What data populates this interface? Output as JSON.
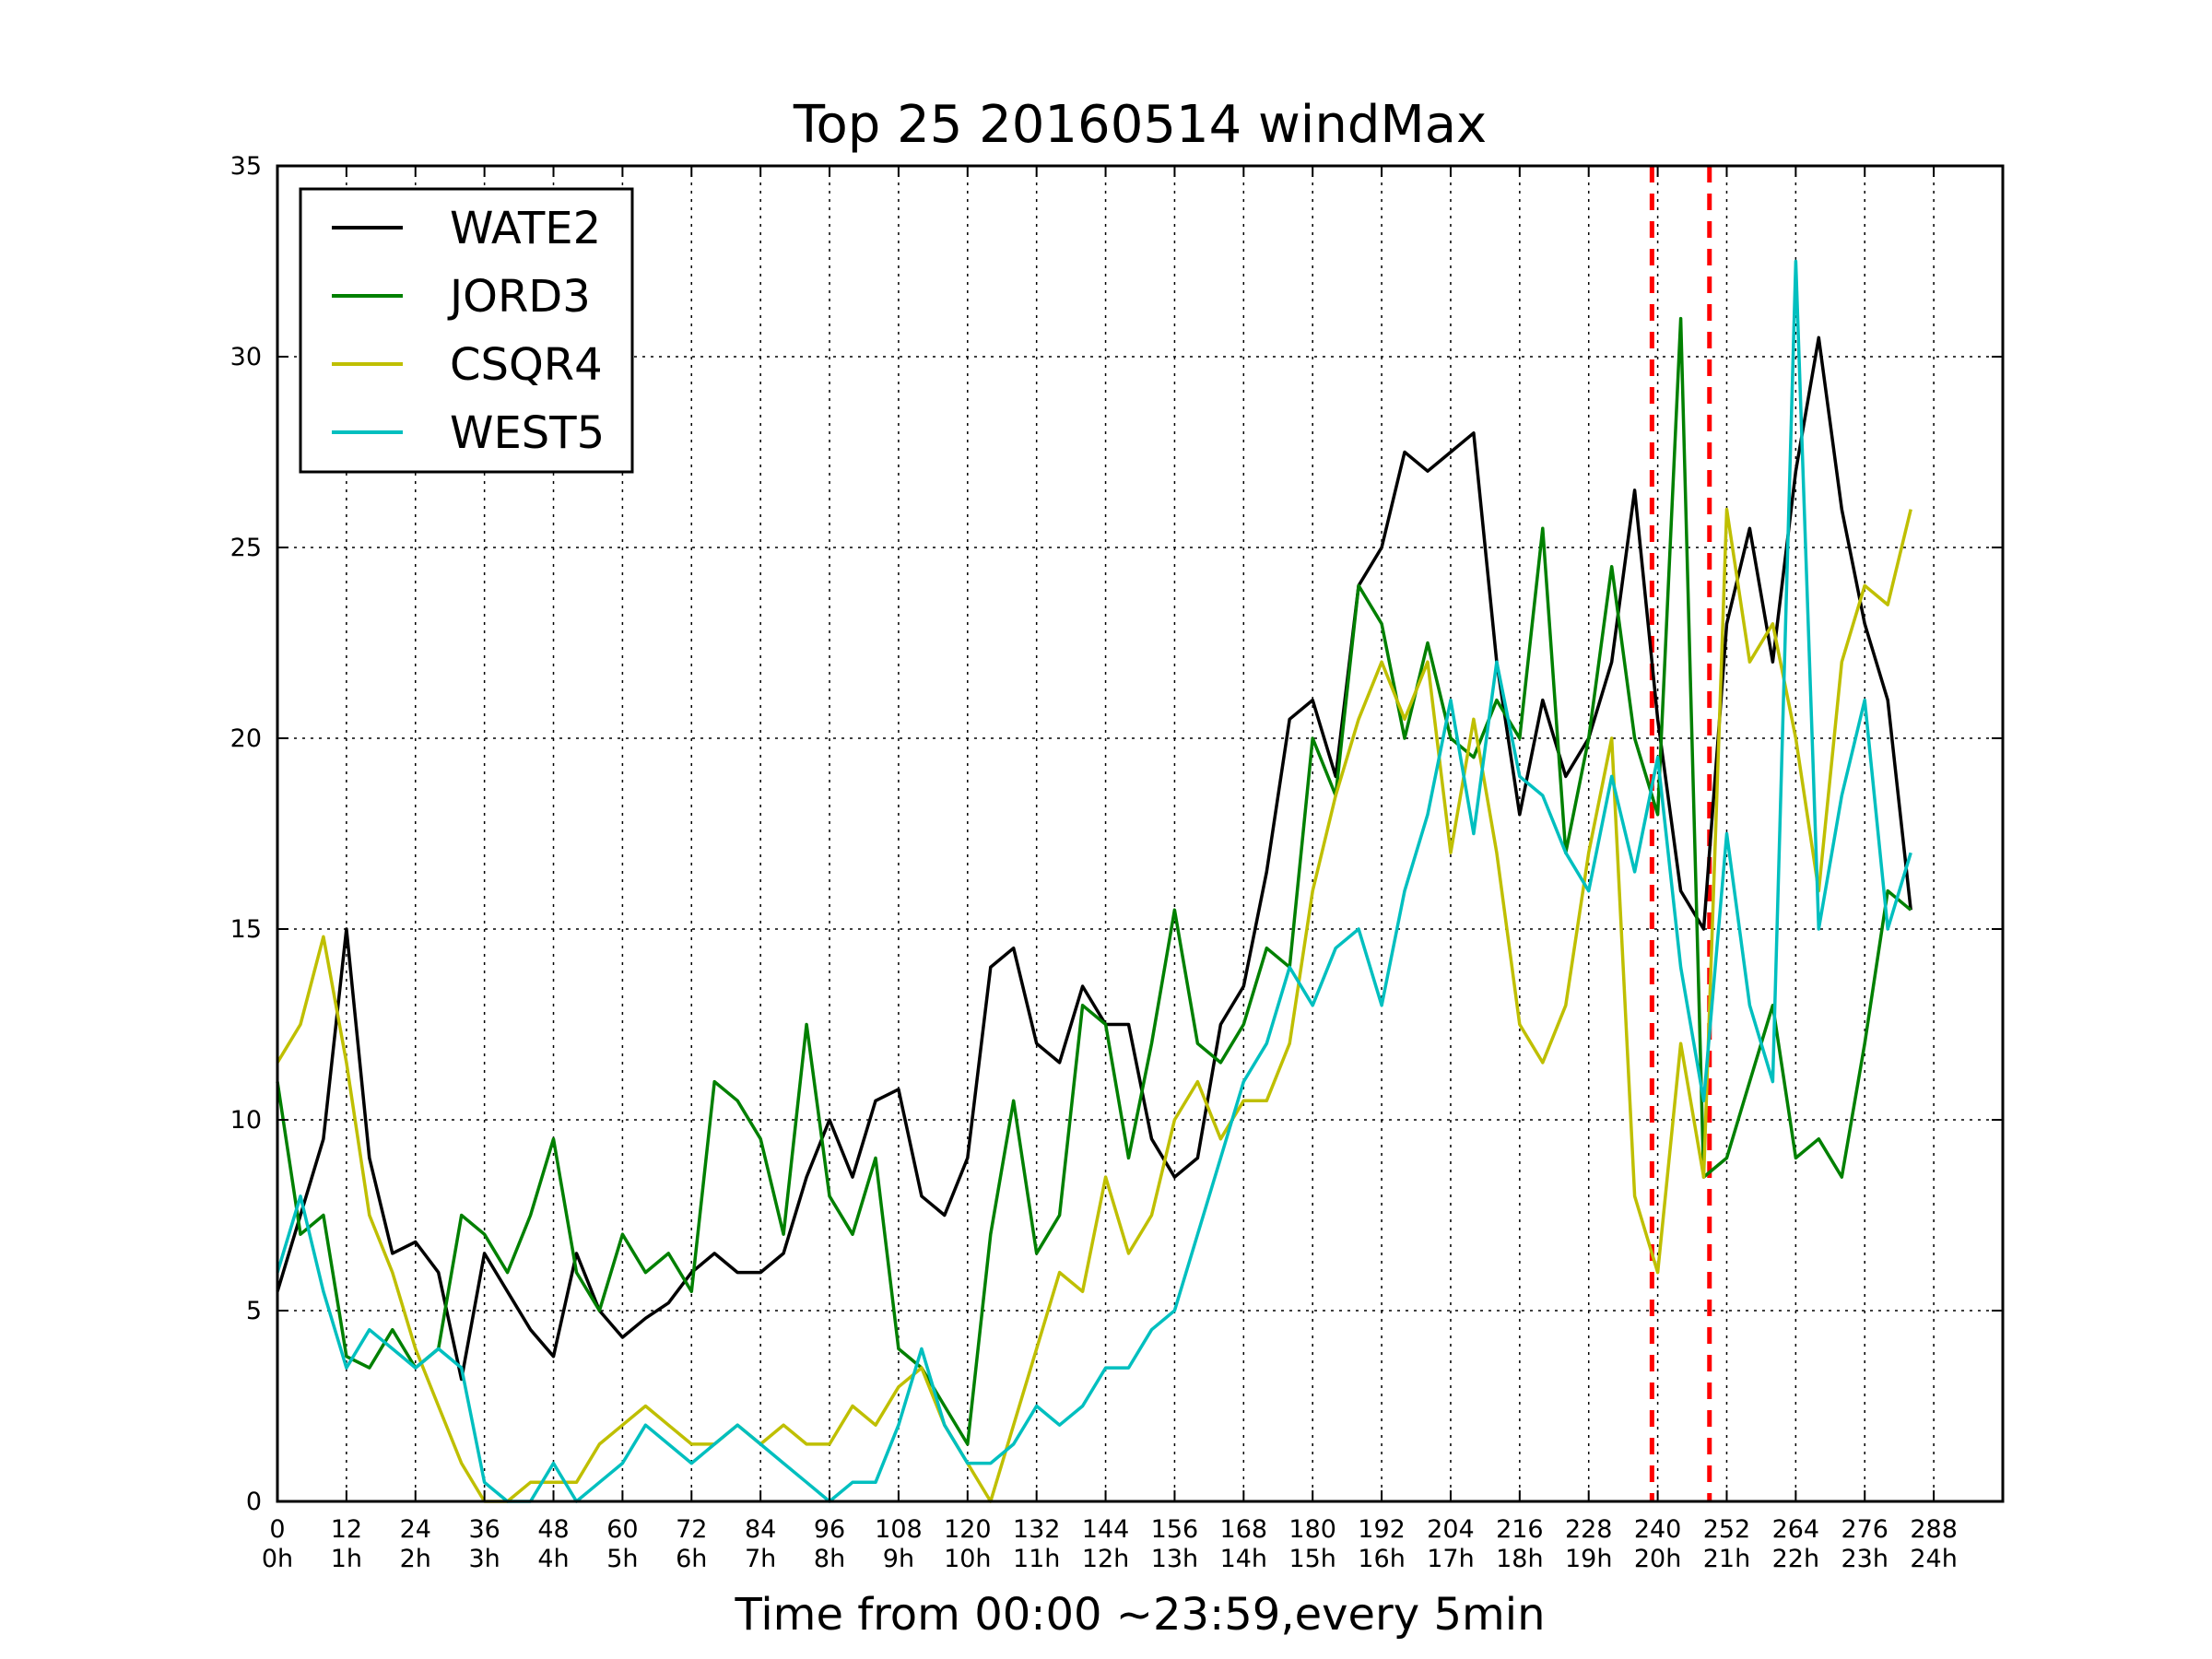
{
  "chart_data": {
    "type": "line",
    "title": "Top 25 20160514 windMax",
    "xlabel": "Time from 00:00 ~23:59,every 5min",
    "ylabel": "",
    "xlim": [
      0,
      300
    ],
    "ylim": [
      0,
      35
    ],
    "x_ticks": [
      0,
      12,
      24,
      36,
      48,
      60,
      72,
      84,
      96,
      108,
      120,
      132,
      144,
      156,
      168,
      180,
      192,
      204,
      216,
      228,
      240,
      252,
      264,
      276,
      288
    ],
    "x_tick_labels": [
      "0",
      "12",
      "24",
      "36",
      "48",
      "60",
      "72",
      "84",
      "96",
      "108",
      "120",
      "132",
      "144",
      "156",
      "168",
      "180",
      "192",
      "204",
      "216",
      "228",
      "240",
      "252",
      "264",
      "276",
      "288"
    ],
    "x_tick_sublabels": [
      "0h",
      "1h",
      "2h",
      "3h",
      "4h",
      "5h",
      "6h",
      "7h",
      "8h",
      "9h",
      "10h",
      "11h",
      "12h",
      "13h",
      "14h",
      "15h",
      "16h",
      "17h",
      "18h",
      "19h",
      "20h",
      "21h",
      "22h",
      "23h",
      "24h"
    ],
    "y_ticks": [
      0,
      5,
      10,
      15,
      20,
      25,
      30,
      35
    ],
    "y_tick_labels": [
      "0",
      "5",
      "10",
      "15",
      "20",
      "25",
      "30",
      "35"
    ],
    "grid": true,
    "legend_position": "top-left",
    "vertical_markers": [
      {
        "x": 239,
        "color": "#ff0000",
        "style": "dashed"
      },
      {
        "x": 249,
        "color": "#ff0000",
        "style": "dashed"
      }
    ],
    "series": [
      {
        "name": "WATE2",
        "color": "#000000",
        "x": [
          0,
          4,
          8,
          12,
          16,
          20,
          24,
          28,
          32,
          36,
          40,
          44,
          48,
          52,
          56,
          60,
          64,
          68,
          72,
          76,
          80,
          84,
          88,
          92,
          96,
          100,
          104,
          108,
          112,
          116,
          120,
          124,
          128,
          132,
          136,
          140,
          144,
          148,
          152,
          156,
          160,
          164,
          168,
          172,
          176,
          180,
          184,
          188,
          192,
          196,
          200,
          204,
          208,
          212,
          216,
          220,
          224,
          228,
          232,
          236,
          240,
          244,
          248,
          252,
          256,
          260,
          264,
          268,
          272,
          276,
          280,
          284
        ],
        "y": [
          5.5,
          7.5,
          9.5,
          15,
          9.0,
          6.5,
          6.8,
          6.0,
          3.2,
          6.5,
          5.5,
          4.5,
          3.8,
          6.5,
          5.0,
          4.3,
          4.8,
          5.2,
          6.0,
          6.5,
          6.0,
          6.0,
          6.5,
          8.5,
          10.0,
          8.5,
          10.5,
          10.8,
          8.0,
          7.5,
          9.0,
          14.0,
          14.5,
          12.0,
          11.5,
          13.5,
          12.5,
          12.5,
          9.5,
          8.5,
          9.0,
          12.5,
          13.5,
          16.5,
          20.5,
          21.0,
          19.0,
          24.0,
          25.0,
          27.5,
          27.0,
          27.5,
          28.0,
          22.0,
          18.0,
          21.0,
          19.0,
          20.0,
          22.0,
          26.5,
          20.5,
          16.0,
          15.0,
          23.0,
          25.5,
          22.0,
          27.0,
          30.5,
          26.0,
          23.0,
          21.0,
          15.5
        ]
      },
      {
        "name": "JORD3",
        "color": "#008000",
        "x": [
          0,
          4,
          8,
          12,
          16,
          20,
          24,
          28,
          32,
          36,
          40,
          44,
          48,
          52,
          56,
          60,
          64,
          68,
          72,
          76,
          80,
          84,
          88,
          92,
          96,
          100,
          104,
          108,
          112,
          116,
          120,
          124,
          128,
          132,
          136,
          140,
          144,
          148,
          152,
          156,
          160,
          164,
          168,
          172,
          176,
          180,
          184,
          188,
          192,
          196,
          200,
          204,
          208,
          212,
          216,
          220,
          224,
          228,
          232,
          236,
          240,
          244,
          248,
          252,
          256,
          260,
          264,
          268,
          272,
          276,
          280,
          284
        ],
        "y": [
          11.0,
          7.0,
          7.5,
          3.8,
          3.5,
          4.5,
          3.5,
          4.0,
          7.5,
          7.0,
          6.0,
          7.5,
          9.5,
          6.0,
          5.0,
          7.0,
          6.0,
          6.5,
          5.5,
          11.0,
          10.5,
          9.5,
          7.0,
          12.5,
          8.0,
          7.0,
          9.0,
          4.0,
          3.5,
          2.5,
          1.5,
          7.0,
          10.5,
          6.5,
          7.5,
          13.0,
          12.5,
          9.0,
          12.0,
          15.5,
          12.0,
          11.5,
          12.5,
          14.5,
          14.0,
          20.0,
          18.5,
          24.0,
          23.0,
          20.0,
          22.5,
          20.0,
          19.5,
          21.0,
          20.0,
          25.5,
          17.0,
          20.0,
          24.5,
          20.0,
          18.0,
          31.0,
          8.5,
          9.0,
          11.0,
          13.0,
          9.0,
          9.5,
          8.5,
          12.0,
          16.0,
          15.5
        ]
      },
      {
        "name": "CSQR4",
        "color": "#bfbf00",
        "x": [
          0,
          4,
          8,
          12,
          16,
          20,
          24,
          28,
          32,
          36,
          40,
          44,
          48,
          52,
          56,
          60,
          64,
          68,
          72,
          76,
          80,
          84,
          88,
          92,
          96,
          100,
          104,
          108,
          112,
          116,
          120,
          124,
          128,
          132,
          136,
          140,
          144,
          148,
          152,
          156,
          160,
          164,
          168,
          172,
          176,
          180,
          184,
          188,
          192,
          196,
          200,
          204,
          208,
          212,
          216,
          220,
          224,
          228,
          232,
          236,
          240,
          244,
          248,
          252,
          256,
          260,
          264,
          268,
          272,
          276,
          280,
          284
        ],
        "y": [
          11.5,
          12.5,
          14.8,
          11.5,
          7.5,
          6.0,
          4.0,
          2.5,
          1.0,
          0.0,
          0.0,
          0.5,
          0.5,
          0.5,
          1.5,
          2.0,
          2.5,
          2.0,
          1.5,
          1.5,
          2.0,
          1.5,
          2.0,
          1.5,
          1.5,
          2.5,
          2.0,
          3.0,
          3.5,
          2.0,
          1.0,
          0.0,
          2.0,
          4.0,
          6.0,
          5.5,
          8.5,
          6.5,
          7.5,
          10.0,
          11.0,
          9.5,
          10.5,
          10.5,
          12.0,
          16.0,
          18.5,
          20.5,
          22.0,
          20.5,
          22.0,
          17.0,
          20.5,
          17.0,
          12.5,
          11.5,
          13.0,
          17.0,
          20.0,
          8.0,
          6.0,
          12.0,
          8.5,
          26.0,
          22.0,
          23.0,
          20.0,
          16.0,
          22.0,
          24.0,
          23.5,
          26.0
        ]
      },
      {
        "name": "WEST5",
        "color": "#00bfbf",
        "x": [
          0,
          4,
          8,
          12,
          16,
          20,
          24,
          28,
          32,
          36,
          40,
          44,
          48,
          52,
          56,
          60,
          64,
          68,
          72,
          76,
          80,
          84,
          88,
          92,
          96,
          100,
          104,
          108,
          112,
          116,
          120,
          124,
          128,
          132,
          136,
          140,
          144,
          148,
          152,
          156,
          160,
          164,
          168,
          172,
          176,
          180,
          184,
          188,
          192,
          196,
          200,
          204,
          208,
          212,
          216,
          220,
          224,
          228,
          232,
          236,
          240,
          244,
          248,
          252,
          256,
          260,
          264,
          268,
          272,
          276,
          280,
          284
        ],
        "y": [
          6.0,
          8.0,
          5.5,
          3.5,
          4.5,
          4.0,
          3.5,
          4.0,
          3.5,
          0.5,
          0.0,
          0.0,
          1.0,
          0.0,
          0.5,
          1.0,
          2.0,
          1.5,
          1.0,
          1.5,
          2.0,
          1.5,
          1.0,
          0.5,
          0.0,
          0.5,
          0.5,
          2.0,
          4.0,
          2.0,
          1.0,
          1.0,
          1.5,
          2.5,
          2.0,
          2.5,
          3.5,
          3.5,
          4.5,
          5.0,
          7.0,
          9.0,
          11.0,
          12.0,
          14.0,
          13.0,
          14.5,
          15.0,
          13.0,
          16.0,
          18.0,
          21.0,
          17.5,
          22.0,
          19.0,
          18.5,
          17.0,
          16.0,
          19.0,
          16.5,
          19.5,
          14.0,
          10.5,
          17.5,
          13.0,
          11.0,
          32.5,
          15.0,
          18.5,
          21.0,
          15.0,
          17.0
        ]
      }
    ]
  }
}
